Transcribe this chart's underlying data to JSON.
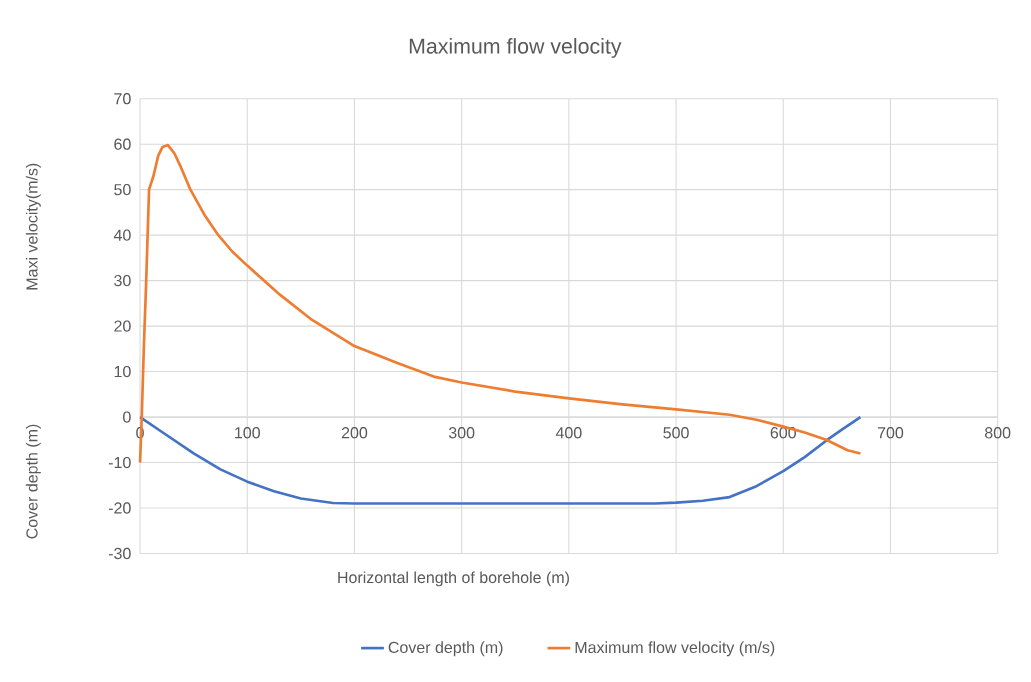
{
  "chart_data": {
    "type": "line",
    "title": "Maximum flow velocity",
    "xlabel": "Horizontal length of borehole (m)",
    "ylabel": "Maxi velocity(m/s)",
    "annotations": [
      "Cover depth (m)"
    ],
    "series": [
      {
        "name": "Cover depth (m)",
        "color": "#4472c4",
        "x": [
          0,
          25,
          50,
          75,
          100,
          125,
          150,
          180,
          200,
          300,
          400,
          480,
          500,
          525,
          550,
          575,
          600,
          620,
          640,
          655,
          672
        ],
        "values": [
          0,
          -4,
          -8,
          -11.5,
          -14.2,
          -16.3,
          -17.9,
          -18.9,
          -19,
          -19,
          -19,
          -19,
          -18.8,
          -18.4,
          -17.6,
          -15.2,
          -11.9,
          -8.8,
          -5.2,
          -2.7,
          0
        ]
      },
      {
        "name": "Maximum flow velocity (m/s)",
        "color": "#ed7d31",
        "x": [
          0,
          1.6,
          3.5,
          5.6,
          8.4,
          12.5,
          17,
          21,
          26,
          32,
          38,
          47,
          60,
          73,
          86,
          100,
          131,
          159,
          200,
          240,
          274,
          300,
          350,
          400,
          450,
          500,
          550,
          575,
          600,
          620,
          640,
          660,
          672
        ],
        "values": [
          -10,
          0,
          15,
          29,
          50,
          53,
          57.5,
          59.4,
          59.8,
          58,
          55,
          50,
          44.5,
          40,
          36.4,
          33.3,
          26.8,
          21.6,
          15.6,
          11.9,
          8.9,
          7.6,
          5.6,
          4.1,
          2.8,
          1.7,
          0.5,
          -0.6,
          -2.1,
          -3.4,
          -5,
          -7.3,
          -8
        ]
      }
    ],
    "xlim": [
      0,
      800
    ],
    "xticks": [
      0,
      100,
      200,
      300,
      400,
      500,
      600,
      700,
      800
    ],
    "ylim": [
      -30,
      70
    ],
    "yticks": [
      -30,
      -20,
      -10,
      0,
      10,
      20,
      30,
      40,
      50,
      60,
      70
    ],
    "grid": true,
    "legend": "bottom",
    "marker": "none",
    "line_style": "solid"
  }
}
